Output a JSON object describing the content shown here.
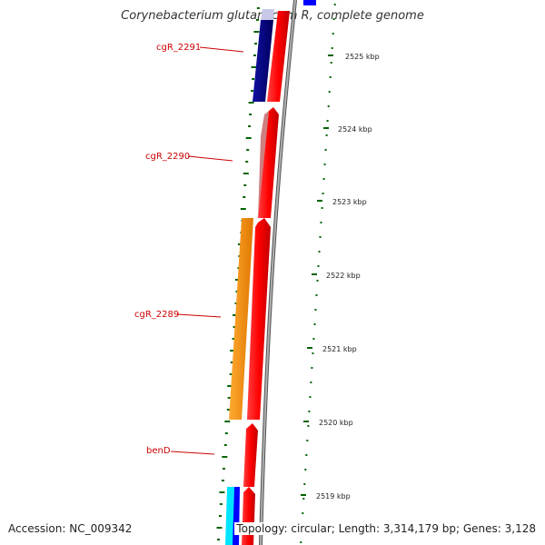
{
  "title": "Corynebacterium glutamicum R, complete genome",
  "footer": {
    "accession": "Accession: NC_009342",
    "topology": "Topology: circular; Length: 3,314,179 bp; Genes: 3,128"
  },
  "colors": {
    "forward_cds": "#ff0000",
    "reverse_cds_navy": "#000080",
    "reverse_cds_orange": "#ff8c00",
    "cyan_feature": "#00ffff",
    "blue_feature": "#0000ff",
    "backbone": "#808080",
    "tick_marks": "#006400",
    "labels": "#cc0000"
  },
  "gene_labels": [
    "cgR_2291",
    "cgR_2290",
    "cgR_2289",
    "benD"
  ],
  "position_labels": [
    "2525 kbp",
    "2524 kbp",
    "2523 kbp",
    "2522 kbp",
    "2521 kbp",
    "2520 kbp",
    "2519 kbp"
  ]
}
